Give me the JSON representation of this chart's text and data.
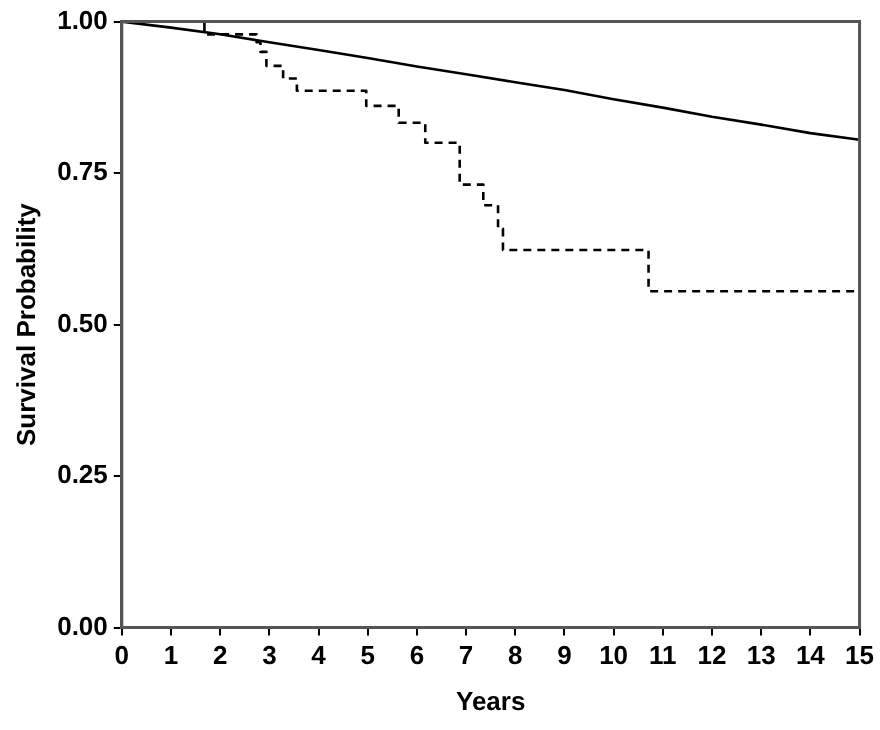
{
  "chart_data": {
    "type": "step",
    "xlabel": "Years",
    "ylabel": "Survival Probability",
    "xlim": [
      0,
      15
    ],
    "xticks": [
      0,
      1,
      2,
      3,
      4,
      5,
      6,
      7,
      8,
      9,
      10,
      11,
      12,
      13,
      14,
      15
    ],
    "ylim": [
      0,
      1
    ],
    "yticks": [
      {
        "value": 0,
        "label": "0.00"
      },
      {
        "value": 0.25,
        "label": "0.25"
      },
      {
        "value": 0.5,
        "label": "0.50"
      },
      {
        "value": 0.75,
        "label": "0.75"
      },
      {
        "value": 1,
        "label": "1.00"
      }
    ],
    "grid": false,
    "legend": false,
    "series": [
      {
        "type": "line",
        "color": "#000000",
        "line_style": "solid",
        "x": [
          0,
          1,
          2,
          3,
          4,
          5,
          6,
          7,
          8,
          9,
          10,
          11,
          12,
          13,
          14,
          15
        ],
        "values": [
          1.0,
          0.99,
          0.979,
          0.966,
          0.953,
          0.94,
          0.926,
          0.913,
          0.9,
          0.887,
          0.872,
          0.858,
          0.843,
          0.83,
          0.816,
          0.805
        ]
      },
      {
        "type": "step",
        "color": "#000000",
        "line_style": "dashed",
        "x": [
          0,
          1.68,
          2.74,
          2.82,
          2.94,
          3.28,
          3.56,
          4.97,
          5.63,
          6.17,
          6.87,
          7.35,
          7.65,
          7.75,
          10.71,
          15
        ],
        "values": [
          1.0,
          0.979,
          0.966,
          0.95,
          0.927,
          0.906,
          0.886,
          0.861,
          0.833,
          0.8,
          0.731,
          0.697,
          0.658,
          0.623,
          0.555,
          0.555
        ]
      }
    ]
  }
}
